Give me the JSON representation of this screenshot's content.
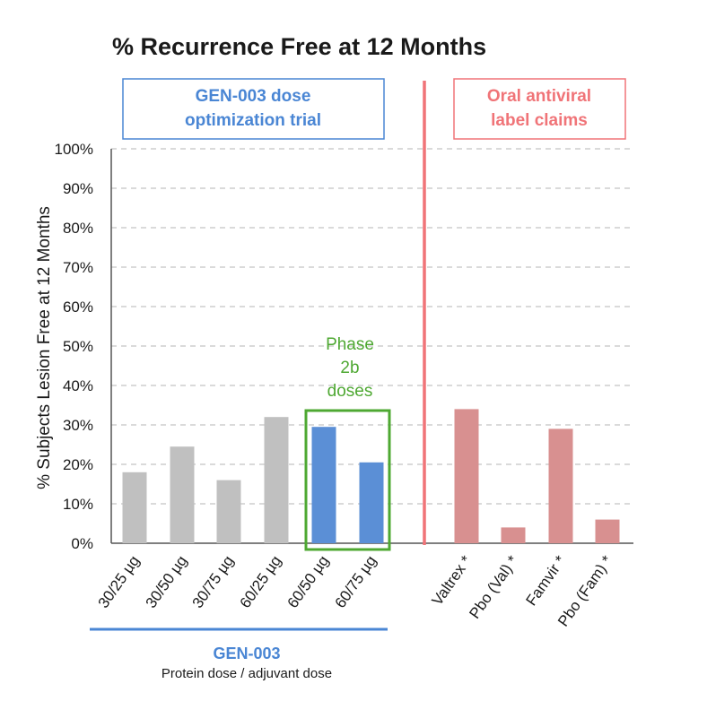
{
  "chart_data": {
    "type": "bar",
    "title": "% Recurrence Free at 12 Months",
    "ylabel": "% Subjects Lesion Free at 12 Months",
    "xlabel": "",
    "ylim": [
      0,
      100
    ],
    "yticks": [
      0,
      10,
      20,
      30,
      40,
      50,
      60,
      70,
      80,
      90,
      100
    ],
    "ytick_suffix": "%",
    "grid": true,
    "groups": [
      {
        "name": "GEN-003",
        "box_label": [
          "GEN-003 dose",
          "optimization trial"
        ],
        "group_label": "GEN-003",
        "group_sublabel": "Protein dose / adjuvant dose",
        "categories": [
          "30/25 µg",
          "30/50 µg",
          "30/75 µg",
          "60/25 µg",
          "60/50 µg",
          "60/75 µg"
        ],
        "values": [
          18,
          24.5,
          16,
          32,
          29.5,
          20.5
        ],
        "colors": [
          "#c0c0c0",
          "#c0c0c0",
          "#c0c0c0",
          "#c0c0c0",
          "#5b8fd6",
          "#5b8fd6"
        ]
      },
      {
        "name": "Oral antiviral",
        "box_label": [
          "Oral antiviral",
          "label claims"
        ],
        "categories": [
          "Valtrex *",
          "Pbo (Val) *",
          "Famvir *",
          "Pbo (Fam) *"
        ],
        "values": [
          34,
          4,
          29,
          6
        ],
        "colors": [
          "#d89090",
          "#d89090",
          "#d89090",
          "#d89090"
        ]
      }
    ],
    "annotations": {
      "phase_box_label": [
        "Phase",
        "2b",
        "doses"
      ]
    }
  },
  "colors": {
    "blue": "#4a86d4",
    "red": "#f07478",
    "green": "#4ea832",
    "grid": "#b5b5b5",
    "axis": "#555555"
  }
}
